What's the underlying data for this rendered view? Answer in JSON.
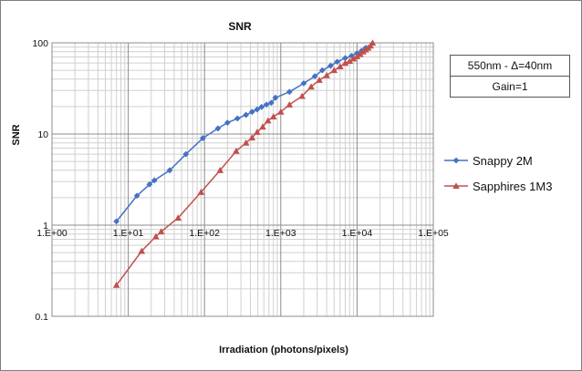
{
  "chart_data": {
    "type": "scatter",
    "title": "SNR",
    "xlabel": "Irradiation (photons/pixels)",
    "ylabel": "SNR",
    "xscale": "log",
    "yscale": "log",
    "xlim": [
      1,
      100000
    ],
    "ylim": [
      0.1,
      100
    ],
    "xticks": [
      1,
      10,
      100,
      1000,
      10000,
      100000
    ],
    "xtick_labels": [
      "1.E+00",
      "1.E+01",
      "1.E+02",
      "1.E+03",
      "1.E+04",
      "1.E+05"
    ],
    "yticks": [
      0.1,
      1,
      10,
      100
    ],
    "ytick_labels": [
      "0.1",
      "1",
      "10",
      "100"
    ],
    "grid": true,
    "legend_position": "right",
    "info_box": [
      "550nm - Δ=40nm",
      "Gain=1"
    ],
    "series": [
      {
        "name": "Snappy 2M",
        "color": "#4472C4",
        "marker": "diamond",
        "x": [
          7,
          13,
          19,
          22,
          35,
          57,
          95,
          150,
          200,
          270,
          350,
          420,
          490,
          560,
          650,
          750,
          850,
          1300,
          2000,
          2800,
          3500,
          4500,
          5500,
          7000,
          8500,
          10000,
          11500,
          13000
        ],
        "y": [
          1.1,
          2.1,
          2.8,
          3.1,
          4.0,
          6.0,
          9.0,
          11.5,
          13.3,
          14.8,
          16.2,
          17.5,
          18.6,
          19.8,
          21,
          22,
          25,
          29,
          36,
          43,
          50,
          56,
          62,
          68,
          72,
          77,
          82,
          88
        ]
      },
      {
        "name": "Sapphires 1M3",
        "color": "#C0504D",
        "marker": "triangle",
        "x": [
          7,
          15,
          23,
          27,
          45,
          90,
          160,
          260,
          350,
          420,
          490,
          580,
          680,
          800,
          1000,
          1300,
          1900,
          2500,
          3200,
          4000,
          5000,
          6000,
          7000,
          8000,
          9000,
          10000,
          11000,
          12000,
          13000,
          14000,
          15000,
          16000
        ],
        "y": [
          0.22,
          0.52,
          0.75,
          0.85,
          1.2,
          2.3,
          4.0,
          6.5,
          8.0,
          9.1,
          10.5,
          12,
          14,
          15.5,
          17.5,
          21,
          26,
          33,
          39,
          44,
          50,
          55,
          60,
          63,
          67,
          71,
          75,
          80,
          84,
          88,
          93,
          100
        ]
      }
    ]
  }
}
